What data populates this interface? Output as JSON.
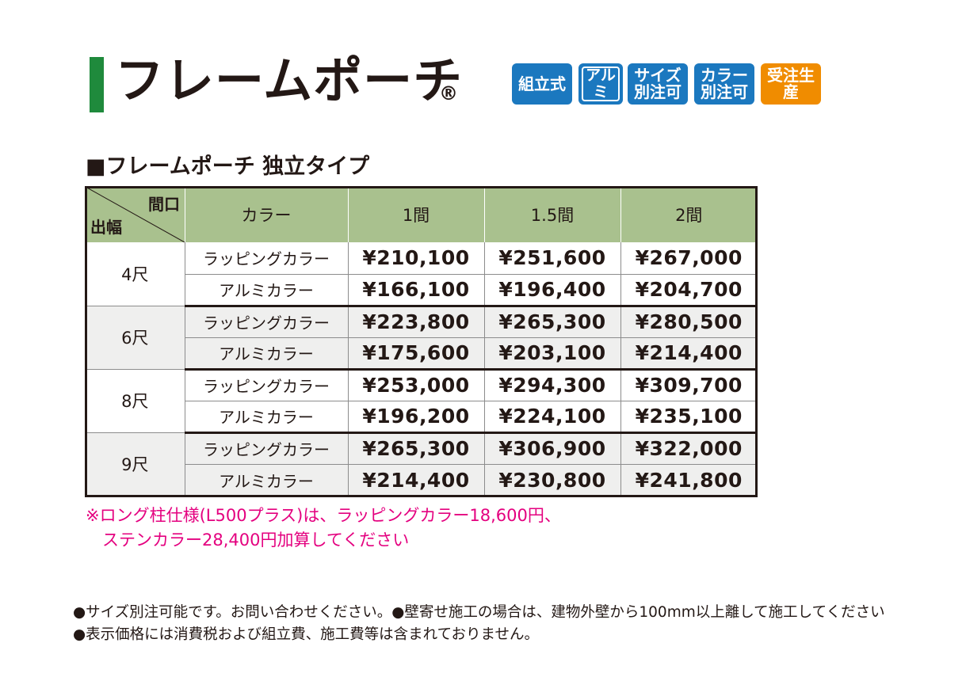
{
  "header": {
    "title": "フレームポーチ",
    "registered_mark": "®",
    "badges": [
      {
        "label": "組立式",
        "icon": "assembly-badge"
      },
      {
        "label": "アルミ",
        "icon": "aluminum-badge"
      },
      {
        "label": "サイズ\n別注可",
        "icon": "size-custom-badge"
      },
      {
        "label": "カラー\n別注可",
        "icon": "color-custom-badge"
      },
      {
        "label": "受注生産",
        "icon": "made-to-order-badge"
      }
    ],
    "badge_colors": {
      "blue": "#1b78bf",
      "orange": "#f08c00"
    },
    "accent_color": "#1f8a3c"
  },
  "section": {
    "subtitle": "■フレームポーチ 独立タイプ"
  },
  "table": {
    "corner_top": "間口",
    "corner_bottom": "出幅",
    "color_header": "カラー",
    "width_headers": [
      "1間",
      "1.5間",
      "2間"
    ],
    "groups": [
      {
        "depth": "4尺",
        "rows": [
          {
            "color": "ラッピングカラー",
            "prices": [
              "¥210,100",
              "¥251,600",
              "¥267,000"
            ]
          },
          {
            "color": "アルミカラー",
            "prices": [
              "¥166,100",
              "¥196,400",
              "¥204,700"
            ]
          }
        ]
      },
      {
        "depth": "6尺",
        "rows": [
          {
            "color": "ラッピングカラー",
            "prices": [
              "¥223,800",
              "¥265,300",
              "¥280,500"
            ]
          },
          {
            "color": "アルミカラー",
            "prices": [
              "¥175,600",
              "¥203,100",
              "¥214,400"
            ]
          }
        ]
      },
      {
        "depth": "8尺",
        "rows": [
          {
            "color": "ラッピングカラー",
            "prices": [
              "¥253,000",
              "¥294,300",
              "¥309,700"
            ]
          },
          {
            "color": "アルミカラー",
            "prices": [
              "¥196,200",
              "¥224,100",
              "¥235,100"
            ]
          }
        ]
      },
      {
        "depth": "9尺",
        "rows": [
          {
            "color": "ラッピングカラー",
            "prices": [
              "¥265,300",
              "¥306,900",
              "¥322,000"
            ]
          },
          {
            "color": "アルミカラー",
            "prices": [
              "¥214,400",
              "¥230,800",
              "¥241,800"
            ]
          }
        ]
      }
    ],
    "header_color": "#a9c18e"
  },
  "note": {
    "line1": "※ロング柱仕様(L500プラス)は、ラッピングカラー18,600円、",
    "line2": "　ステンカラー28,400円加算してください",
    "color": "#e4007f"
  },
  "footer": {
    "line1": "●サイズ別注可能です。お問い合わせください。●壁寄せ施工の場合は、建物外壁から100mm以上離して施工してください",
    "line2": "●表示価格には消費税および組立費、施工費等は含まれておりません。"
  }
}
